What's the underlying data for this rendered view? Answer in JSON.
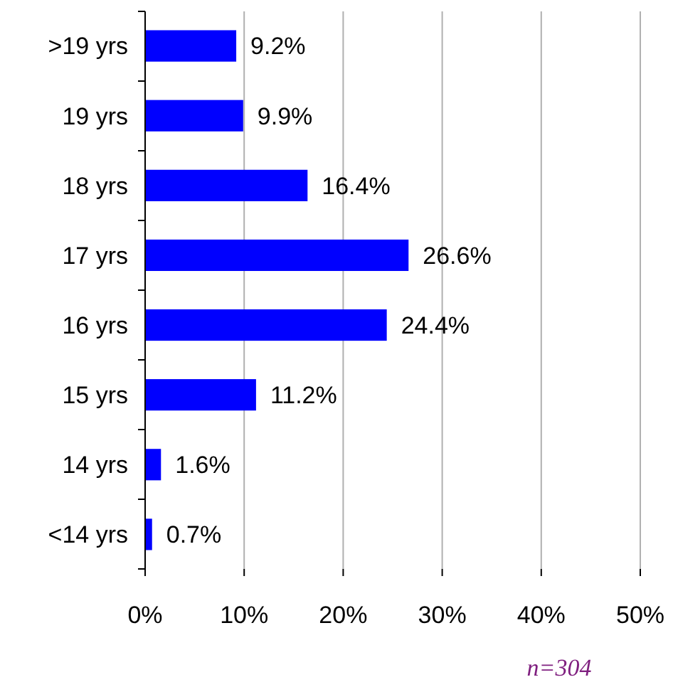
{
  "chart_data": {
    "type": "bar",
    "orientation": "horizontal",
    "categories": [
      ">19 yrs",
      "19 yrs",
      "18 yrs",
      "17 yrs",
      "16 yrs",
      "15 yrs",
      "14 yrs",
      "<14 yrs"
    ],
    "values": [
      9.2,
      9.9,
      16.4,
      26.6,
      24.4,
      11.2,
      1.6,
      0.7
    ],
    "value_labels": [
      "9.2%",
      "9.9%",
      "16.4%",
      "26.6%",
      "24.4%",
      "11.2%",
      "1.6%",
      "0.7%"
    ],
    "color": "#0000ff",
    "xlim": [
      0,
      50
    ],
    "xticks": [
      {
        "value": 0,
        "label": "0%"
      },
      {
        "value": 10,
        "label": "10%"
      },
      {
        "value": 20,
        "label": "20%"
      },
      {
        "value": 30,
        "label": "30%"
      },
      {
        "value": 40,
        "label": "40%"
      },
      {
        "value": 50,
        "label": "50%"
      }
    ],
    "grid": "x",
    "annotations": [
      "n=304"
    ]
  }
}
